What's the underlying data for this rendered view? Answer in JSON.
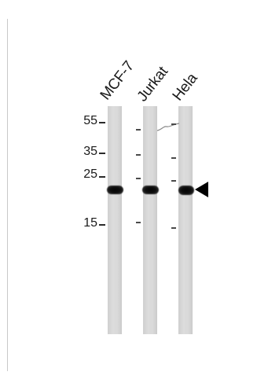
{
  "lanes": [
    {
      "label": "MCF-7"
    },
    {
      "label": "Jurkat"
    },
    {
      "label": "Hela"
    }
  ],
  "molecular_weight_markers": [
    {
      "label": "55"
    },
    {
      "label": "35"
    },
    {
      "label": "25"
    },
    {
      "label": "15"
    }
  ],
  "colors": {
    "background": "#ffffff",
    "lane": "#d8d8d8",
    "band": "#050505",
    "arrow": "#000000"
  },
  "icons": {
    "band_indicator": "left-pointing-triangle-arrow"
  }
}
